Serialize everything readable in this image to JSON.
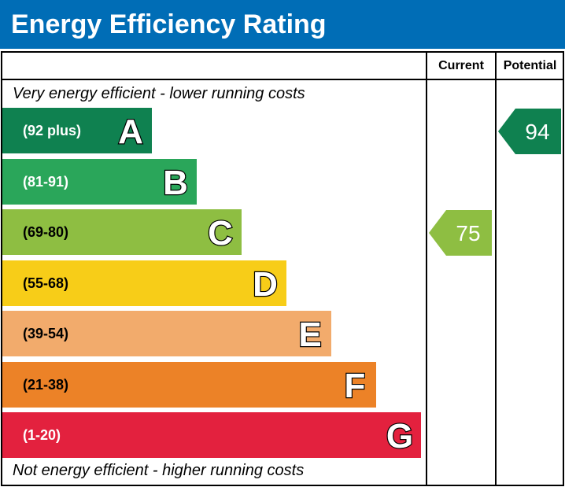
{
  "title": "Energy Efficiency Rating",
  "columns": {
    "current": "Current",
    "potential": "Potential"
  },
  "top_note": "Very energy efficient - lower running costs",
  "bottom_note": "Not energy efficient - higher running costs",
  "chart_data": {
    "type": "bar",
    "categories": [
      "A",
      "B",
      "C",
      "D",
      "E",
      "F",
      "G"
    ],
    "ranges": [
      "(92 plus)",
      "(81-91)",
      "(69-80)",
      "(55-68)",
      "(39-54)",
      "(21-38)",
      "(1-20)"
    ],
    "band_min": [
      92,
      81,
      69,
      55,
      39,
      21,
      1
    ],
    "band_max": [
      100,
      91,
      80,
      68,
      54,
      38,
      20
    ],
    "colors": [
      "#0f8150",
      "#2aa65a",
      "#8ebe42",
      "#f7cd18",
      "#f2ab6c",
      "#ec8227",
      "#e3213e"
    ],
    "range_text_colors": [
      "#ffffff",
      "#ffffff",
      "#000000",
      "#000000",
      "#000000",
      "#000000",
      "#ffffff"
    ],
    "current": {
      "value": 75,
      "band": "C",
      "color": "#8ebe42",
      "text_color": "#ffffff"
    },
    "potential": {
      "value": 94,
      "band": "A",
      "color": "#0f8150",
      "text_color": "#ffffff"
    }
  }
}
